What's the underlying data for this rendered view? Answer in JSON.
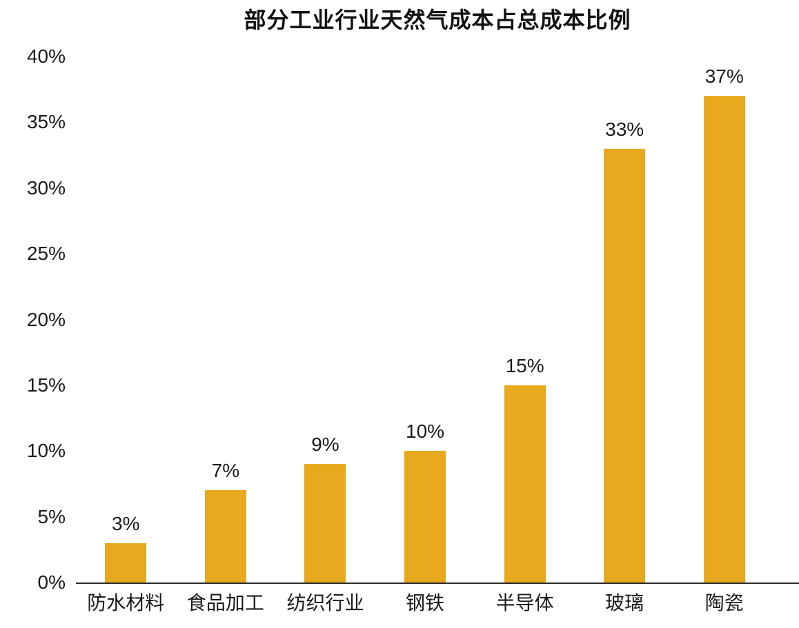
{
  "chart_data": {
    "type": "bar",
    "title": "部分工业行业天然气成本占总成本比例",
    "categories": [
      "防水材料",
      "食品加工",
      "纺织行业",
      "钢铁",
      "半导体",
      "玻璃",
      "陶瓷"
    ],
    "values": [
      3,
      7,
      9,
      10,
      15,
      33,
      37
    ],
    "value_labels": [
      "3%",
      "7%",
      "9%",
      "10%",
      "15%",
      "33%",
      "37%"
    ],
    "xlabel": "",
    "ylabel": "",
    "ylim": [
      0,
      40
    ],
    "ytick_values": [
      0,
      5,
      10,
      15,
      20,
      25,
      30,
      35,
      40
    ],
    "ytick_labels": [
      "0%",
      "5%",
      "10%",
      "15%",
      "20%",
      "25%",
      "30%",
      "35%",
      "40%"
    ],
    "grid": false,
    "legend_position": "none",
    "bar_color": "#E8A91E",
    "axis_color": "#2B2B2B",
    "text_color": "#1A1A1A",
    "title_color": "#111111"
  }
}
